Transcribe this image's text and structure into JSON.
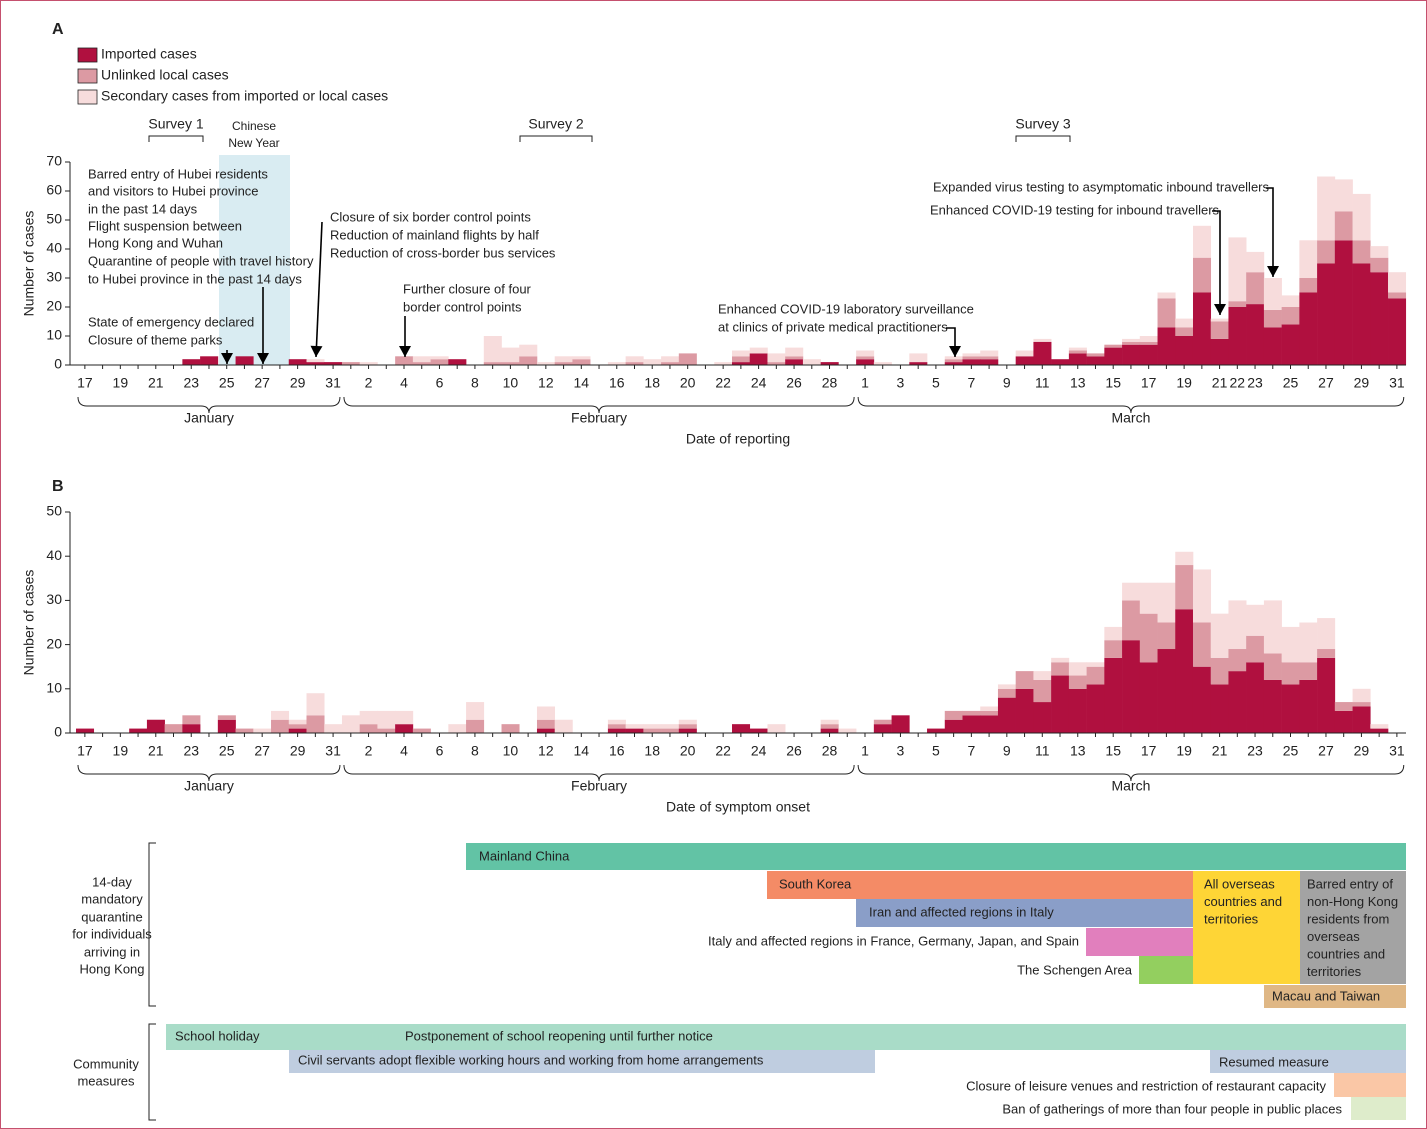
{
  "chart_data": [
    {
      "type": "stacked_bar",
      "panel": "A",
      "categories": [
        17,
        null,
        19,
        null,
        21,
        null,
        23,
        null,
        25,
        null,
        27,
        null,
        29,
        null,
        31,
        null,
        2,
        null,
        4,
        null,
        6,
        null,
        8,
        null,
        10,
        null,
        12,
        null,
        14,
        null,
        16,
        null,
        18,
        null,
        20,
        null,
        22,
        null,
        24,
        null,
        26,
        null,
        28,
        null,
        1,
        null,
        3,
        null,
        5,
        null,
        7,
        null,
        9,
        null,
        11,
        null,
        13,
        null,
        15,
        null,
        17,
        null,
        19,
        null,
        21,
        22,
        23,
        null,
        25,
        null,
        27,
        null,
        29,
        null,
        31
      ],
      "months": [
        "January",
        "February",
        "March"
      ],
      "xlabel": "Date of reporting",
      "ylabel": "Number of cases",
      "ylim": [
        0,
        70
      ],
      "yticks": [
        0,
        10,
        20,
        30,
        40,
        50,
        60,
        70
      ],
      "legend": "top-left",
      "series": [
        {
          "name": "Imported cases",
          "color": "#b0103f",
          "values": [
            0,
            0,
            0,
            0,
            0,
            0,
            2,
            3,
            0,
            3,
            0,
            0,
            2,
            1,
            1,
            0,
            0,
            0,
            0,
            0,
            0,
            2,
            0,
            0,
            0,
            0,
            0,
            0,
            0,
            0,
            0,
            0,
            0,
            0,
            0,
            0,
            0,
            1,
            4,
            0,
            2,
            0,
            1,
            0,
            2,
            0,
            0,
            1,
            0,
            1,
            2,
            2,
            0,
            3,
            8,
            2,
            4,
            3,
            6,
            7,
            7,
            13,
            10,
            25,
            9,
            20,
            21,
            13,
            14,
            25,
            35,
            43,
            35,
            32,
            23
          ]
        },
        {
          "name": "Unlinked local cases",
          "color": "#dc9aa3",
          "values": [
            0,
            0,
            0,
            0,
            0,
            0,
            0,
            0,
            0,
            0,
            0,
            0,
            0,
            0,
            0,
            1,
            0,
            0,
            3,
            1,
            2,
            0,
            0,
            1,
            1,
            3,
            0,
            1,
            2,
            0,
            0,
            1,
            0,
            1,
            4,
            0,
            0,
            2,
            0,
            1,
            1,
            0,
            0,
            0,
            1,
            0,
            0,
            0,
            0,
            1,
            1,
            1,
            0,
            0,
            0,
            0,
            1,
            1,
            1,
            1,
            1,
            10,
            3,
            12,
            6,
            2,
            11,
            6,
            6,
            5,
            8,
            10,
            8,
            5,
            2
          ]
        },
        {
          "name": "Secondary cases from imported or local cases",
          "color": "#f7dcdc",
          "values": [
            0,
            0,
            0,
            0,
            0,
            0,
            0,
            0,
            0,
            0,
            0,
            0,
            0,
            1,
            0,
            0,
            1,
            0,
            0,
            2,
            1,
            0,
            0,
            9,
            5,
            4,
            1,
            2,
            1,
            0,
            1,
            2,
            2,
            2,
            0,
            0,
            1,
            2,
            2,
            3,
            3,
            2,
            0,
            0,
            2,
            1,
            0,
            3,
            0,
            1,
            1,
            2,
            0,
            2,
            1,
            0,
            1,
            0,
            0,
            1,
            2,
            2,
            3,
            11,
            1,
            22,
            7,
            11,
            4,
            13,
            22,
            11,
            16,
            4,
            7
          ]
        }
      ],
      "surveys": [
        "Survey 1",
        "Survey 2",
        "Survey 3"
      ],
      "shaded_label": [
        "Chinese",
        "New Year"
      ],
      "annotations": [
        "Barred entry of Hubei residents",
        "and visitors to Hubei province",
        "in the past 14 days",
        "Flight suspension between",
        "Hong Kong and Wuhan",
        "Quarantine of people with travel history",
        "to Hubei province in the past 14 days",
        "State of emergency declared",
        "Closure of theme parks",
        "Closure of six border control points",
        "Reduction of mainland flights by half",
        "Reduction of cross-border bus services",
        "Further closure of four",
        "border control points",
        "Enhanced COVID-19 laboratory surveillance",
        "at clinics of private medical practitioners",
        "Expanded virus testing to asymptomatic inbound travellers",
        "Enhanced COVID-19 testing for inbound travellers"
      ]
    },
    {
      "type": "stacked_bar",
      "panel": "B",
      "categories": [
        17,
        null,
        19,
        null,
        21,
        null,
        23,
        null,
        25,
        null,
        27,
        null,
        29,
        null,
        31,
        null,
        2,
        null,
        4,
        null,
        6,
        null,
        8,
        null,
        10,
        null,
        12,
        null,
        14,
        null,
        16,
        null,
        18,
        null,
        20,
        null,
        22,
        null,
        24,
        null,
        26,
        null,
        28,
        null,
        1,
        null,
        3,
        null,
        5,
        null,
        7,
        null,
        9,
        null,
        11,
        null,
        13,
        null,
        15,
        null,
        17,
        null,
        19,
        null,
        21,
        null,
        23,
        null,
        25,
        null,
        27,
        null,
        29,
        null,
        31
      ],
      "months": [
        "January",
        "February",
        "March"
      ],
      "xlabel": "Date of symptom onset",
      "ylabel": "Number of cases",
      "ylim": [
        0,
        50
      ],
      "yticks": [
        0,
        10,
        20,
        30,
        40,
        50
      ],
      "series": [
        {
          "color": "#b0103f",
          "values": [
            1,
            0,
            0,
            1,
            3,
            0,
            2,
            0,
            3,
            0,
            0,
            0,
            1,
            0,
            0,
            0,
            0,
            0,
            2,
            0,
            0,
            0,
            0,
            0,
            0,
            0,
            1,
            0,
            0,
            0,
            1,
            1,
            0,
            0,
            1,
            0,
            0,
            2,
            1,
            0,
            0,
            0,
            1,
            0,
            0,
            2,
            4,
            0,
            1,
            3,
            4,
            4,
            8,
            10,
            7,
            13,
            10,
            11,
            17,
            21,
            16,
            19,
            28,
            15,
            11,
            14,
            16,
            12,
            11,
            12,
            17,
            5,
            6,
            1,
            0
          ]
        },
        {
          "color": "#dc9aa3",
          "values": [
            0,
            0,
            0,
            0,
            0,
            2,
            2,
            0,
            1,
            1,
            0,
            3,
            1,
            4,
            0,
            0,
            2,
            1,
            0,
            1,
            0,
            0,
            3,
            0,
            2,
            0,
            2,
            0,
            0,
            0,
            1,
            0,
            1,
            1,
            1,
            0,
            0,
            0,
            0,
            0,
            0,
            0,
            1,
            0,
            0,
            1,
            0,
            0,
            0,
            2,
            1,
            1,
            2,
            4,
            5,
            3,
            3,
            4,
            4,
            9,
            11,
            6,
            10,
            10,
            6,
            5,
            6,
            6,
            5,
            4,
            2,
            2,
            1,
            0,
            0
          ]
        },
        {
          "color": "#f7dcdc",
          "values": [
            0,
            0,
            0,
            0,
            0,
            0,
            0,
            0,
            0,
            0,
            1,
            2,
            1,
            5,
            2,
            4,
            3,
            4,
            3,
            0,
            0,
            2,
            4,
            0,
            0,
            0,
            3,
            3,
            0,
            0,
            1,
            1,
            1,
            1,
            1,
            0,
            0,
            0,
            0,
            2,
            0,
            0,
            1,
            1,
            0,
            0,
            0,
            0,
            0,
            0,
            0,
            1,
            1,
            0,
            2,
            1,
            3,
            1,
            3,
            4,
            7,
            9,
            3,
            12,
            10,
            11,
            7,
            12,
            8,
            9,
            7,
            0,
            3,
            1,
            0
          ]
        }
      ]
    }
  ],
  "timeline": {
    "quarantine": {
      "label": [
        "14-day",
        "mandatory",
        "quarantine",
        "for individuals",
        "arriving in",
        "Hong Kong"
      ],
      "measures": [
        [
          "Mainland China"
        ],
        [
          "South Korea"
        ],
        [
          "Iran and affected regions in Italy"
        ],
        [
          "Italy and affected regions in France, Germany, Japan, and Spain"
        ],
        [
          "The Schengen Area"
        ],
        [
          "All overseas",
          "countries and",
          "territories"
        ],
        [
          "Barred entry of",
          "non-Hong Kong",
          "residents from",
          "overseas",
          "countries and",
          "territories"
        ],
        [
          "Macau and Taiwan"
        ]
      ]
    },
    "community": {
      "label": [
        "Community",
        "measures"
      ],
      "measures": [
        [
          "School holiday"
        ],
        [
          "Postponement of school reopening until further notice"
        ],
        [
          "Civil servants adopt flexible working hours and working from home arrangements"
        ],
        [
          "Resumed measure"
        ],
        [
          "Closure of leisure venues and restriction of restaurant capacity"
        ],
        [
          "Ban of gatherings of more than four people in public places"
        ]
      ]
    }
  }
}
